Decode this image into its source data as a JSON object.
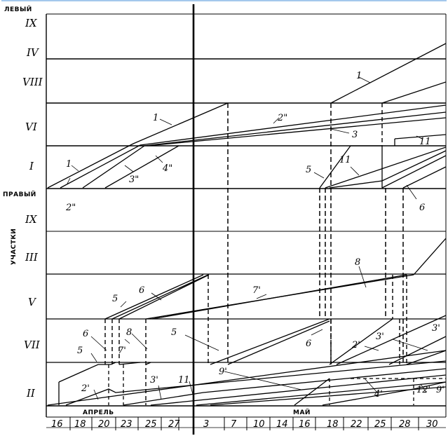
{
  "diagram": {
    "groups": {
      "left": "ЛЕВЫЙ",
      "right": "ПРАВЫЙ",
      "axis": "УЧАСТКИ"
    },
    "left_sections": [
      "IX",
      "IV",
      "VIII",
      "VI",
      "I"
    ],
    "right_sections": [
      "IX",
      "III",
      "V",
      "VII",
      "II"
    ],
    "months": {
      "april": "АПРЕЛЬ",
      "may": "МАЙ"
    },
    "dates": [
      "16",
      "18",
      "20",
      "23",
      "25",
      "27",
      "3",
      "7",
      "10",
      "14",
      "16",
      "18",
      "22",
      "25",
      "28",
      "30"
    ],
    "line_labels": {
      "l1a": "1",
      "l1b": "1",
      "l1c": "1",
      "l2dd_a": "2\"",
      "l2dd_b": "2\"",
      "l3dd": "3\"",
      "l4dd": "4\"",
      "l3": "3",
      "l11a": "11",
      "l11b": "11",
      "l5a": "5",
      "l6a": "6",
      "r5a": "5",
      "r6a": "6",
      "r7p": "7'",
      "r8": "8",
      "r6b": "6",
      "r8b": "8",
      "r7pb": "7'",
      "r5b": "5",
      "r5c": "5",
      "r6c": "6",
      "r2p": "2'",
      "r3p": "3'",
      "r11": "11",
      "r9p": "9'",
      "r2pb": "2'",
      "r3pb": "3'",
      "r4p": "4'",
      "r12p": "12'",
      "r9pb": "9'",
      "r3pc": "3'"
    }
  }
}
